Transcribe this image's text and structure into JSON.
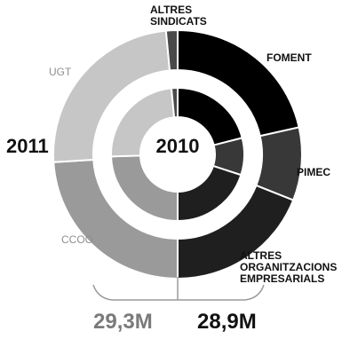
{
  "chart_data": {
    "type": "pie",
    "variant": "nested-donut",
    "rings": [
      {
        "name": "2011",
        "position": "outer",
        "total_label": "29,3M",
        "slices": [
          {
            "label": "FOMENT",
            "value": 21.5,
            "color": "#000000"
          },
          {
            "label": "PIMEC",
            "value": 9.5,
            "color": "#383838"
          },
          {
            "label": "ALTRES ORGANITZACIONS EMPRESARIALS",
            "value": 19.0,
            "color": "#1f1f1f"
          },
          {
            "label": "CCOO",
            "value": 24.0,
            "color": "#9a9a9a"
          },
          {
            "label": "UGT",
            "value": 24.5,
            "color": "#c6c6c6"
          },
          {
            "label": "ALTRES SINDICATS",
            "value": 1.5,
            "color": "#4a4a4a"
          }
        ]
      },
      {
        "name": "2010",
        "position": "inner",
        "total_label": "28,9M",
        "slices": [
          {
            "label": "FOMENT",
            "value": 21.0,
            "color": "#000000"
          },
          {
            "label": "PIMEC",
            "value": 9.0,
            "color": "#383838"
          },
          {
            "label": "ALTRES ORGANITZACIONS EMPRESARIALS",
            "value": 20.0,
            "color": "#1f1f1f"
          },
          {
            "label": "CCOO",
            "value": 24.5,
            "color": "#9a9a9a"
          },
          {
            "label": "UGT",
            "value": 24.0,
            "color": "#c6c6c6"
          },
          {
            "label": "ALTRES SINDICATS",
            "value": 1.5,
            "color": "#4a4a4a"
          }
        ]
      }
    ],
    "slice_labels": {
      "altres_sindicats_1": "ALTRES",
      "altres_sindicats_2": "SINDICATS",
      "foment": "FOMENT",
      "pimec": "PIMEC",
      "ugt": "UGT",
      "ccoo": "CCOO",
      "altres_org_1": "ALTRES",
      "altres_org_2": "ORGANITZACIONS",
      "altres_org_3": "EMPRESARIALS"
    },
    "ring_labels": {
      "outer": "2011",
      "inner": "2010"
    },
    "totals": {
      "outer": "29,3M",
      "inner": "28,9M"
    },
    "colors": {
      "separator": "#ffffff",
      "bracket": "#9a9a9a"
    }
  }
}
